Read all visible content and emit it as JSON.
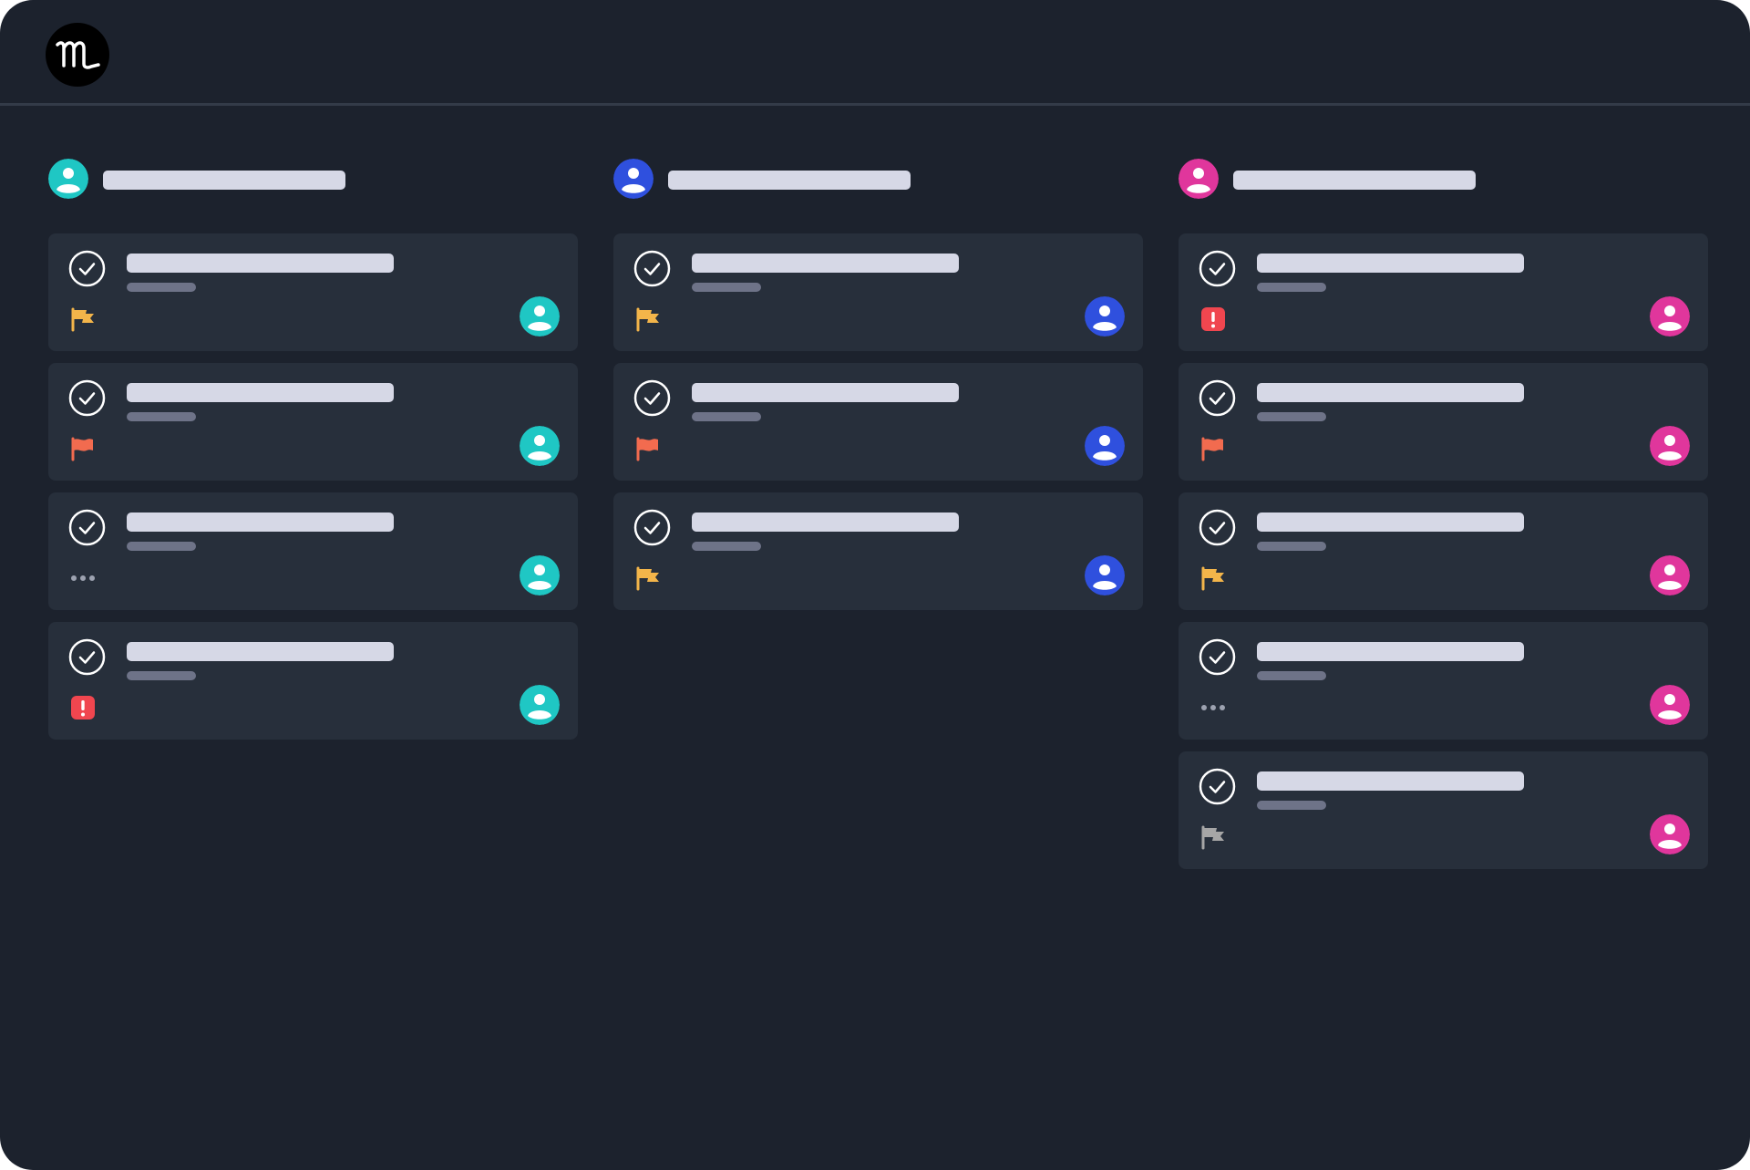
{
  "app": {
    "logo_icon": "monogram-logo-icon"
  },
  "colors": {
    "background": "#1c222d",
    "card": "#272f3b",
    "divider": "#333b48",
    "placeholder_title": "#d6d8e6",
    "placeholder_subtitle": "#6e7388",
    "teal": "#1fc7c4",
    "blue": "#2f50de",
    "magenta": "#e0369c",
    "flag_yellow": "#f3b54a",
    "flag_orange": "#f26b4f",
    "flag_gray": "#a6a6a6",
    "alert_red": "#f0464f"
  },
  "columns": [
    {
      "assignee_color": "teal",
      "cards": [
        {
          "status_icon": "flag-yellow-icon"
        },
        {
          "status_icon": "flag-orange-icon"
        },
        {
          "status_icon": "ellipsis-icon"
        },
        {
          "status_icon": "alert-icon"
        }
      ]
    },
    {
      "assignee_color": "blue",
      "cards": [
        {
          "status_icon": "flag-yellow-icon"
        },
        {
          "status_icon": "flag-orange-icon"
        },
        {
          "status_icon": "flag-yellow-icon"
        }
      ]
    },
    {
      "assignee_color": "magenta",
      "cards": [
        {
          "status_icon": "alert-icon"
        },
        {
          "status_icon": "flag-orange-icon"
        },
        {
          "status_icon": "flag-yellow-icon"
        },
        {
          "status_icon": "ellipsis-icon"
        },
        {
          "status_icon": "flag-gray-icon"
        }
      ]
    }
  ]
}
